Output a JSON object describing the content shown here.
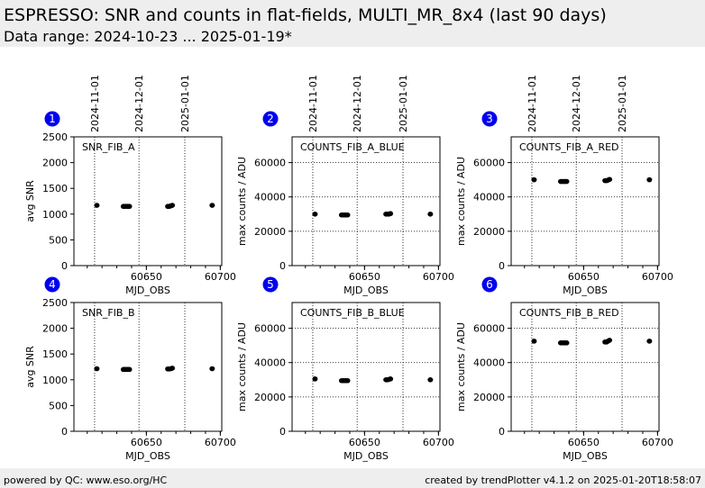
{
  "header": {
    "title": "ESPRESSO: SNR and counts in flat-fields, MULTI_MR_8x4 (last 90 days)",
    "subtitle": "Data range: 2024-10-23 ... 2025-01-19*"
  },
  "footer": {
    "left": "powered by QC: www.eso.org/HC",
    "right": "created by trendPlotter v4.1.2 on 2025-01-20T18:58:07"
  },
  "chart_data": [
    {
      "type": "scatter",
      "number": "1",
      "label": "SNR_FIB_A",
      "xlabel": "MJD_OBS",
      "ylabel": "avg SNR",
      "xlim": [
        60601,
        60701
      ],
      "ylim": [
        0,
        2500
      ],
      "yticks": [
        0,
        500,
        1000,
        1500,
        2000,
        2500
      ],
      "xticks": [
        60650,
        60700
      ],
      "date_ticks": [
        {
          "date": "2024-11-01",
          "mjd": 60615
        },
        {
          "date": "2024-12-01",
          "mjd": 60645
        },
        {
          "date": "2025-01-01",
          "mjd": 60676
        }
      ],
      "x": [
        60616.5,
        60634.5,
        60635.5,
        60636.5,
        60637.5,
        60638.5,
        60664.5,
        60665.5,
        60666.5,
        60667.5,
        60694.5
      ],
      "y": [
        1170,
        1150,
        1150,
        1150,
        1150,
        1150,
        1150,
        1150,
        1160,
        1170,
        1170
      ]
    },
    {
      "type": "scatter",
      "number": "2",
      "label": "COUNTS_FIB_A_BLUE",
      "xlabel": "MJD_OBS",
      "ylabel": "max counts / ADU",
      "xlim": [
        60601,
        60701
      ],
      "ylim": [
        0,
        75000
      ],
      "yticks": [
        0,
        20000,
        40000,
        60000
      ],
      "xticks": [
        60650,
        60700
      ],
      "date_ticks": [
        {
          "date": "2024-11-01",
          "mjd": 60615
        },
        {
          "date": "2024-12-01",
          "mjd": 60645
        },
        {
          "date": "2025-01-01",
          "mjd": 60676
        }
      ],
      "x": [
        60616.5,
        60634.5,
        60635.5,
        60636.5,
        60637.5,
        60638.5,
        60664.5,
        60665.5,
        60666.5,
        60667.5,
        60694.5
      ],
      "y": [
        30000,
        29500,
        29500,
        29500,
        29500,
        29500,
        30000,
        30000,
        30000,
        30300,
        30000
      ]
    },
    {
      "type": "scatter",
      "number": "3",
      "label": "COUNTS_FIB_A_RED",
      "xlabel": "MJD_OBS",
      "ylabel": "max counts / ADU",
      "xlim": [
        60601,
        60701
      ],
      "ylim": [
        0,
        75000
      ],
      "yticks": [
        0,
        20000,
        40000,
        60000
      ],
      "xticks": [
        60650,
        60700
      ],
      "date_ticks": [
        {
          "date": "2024-11-01",
          "mjd": 60615
        },
        {
          "date": "2024-12-01",
          "mjd": 60645
        },
        {
          "date": "2025-01-01",
          "mjd": 60676
        }
      ],
      "x": [
        60616.5,
        60634.5,
        60635.5,
        60636.5,
        60637.5,
        60638.5,
        60664.5,
        60665.5,
        60666.5,
        60667.5,
        60694.5
      ],
      "y": [
        50000,
        49000,
        49000,
        49000,
        49000,
        49000,
        49500,
        49500,
        49800,
        50200,
        50000
      ]
    },
    {
      "type": "scatter",
      "number": "4",
      "label": "SNR_FIB_B",
      "xlabel": "MJD_OBS",
      "ylabel": "avg SNR",
      "xlim": [
        60601,
        60701
      ],
      "ylim": [
        0,
        2500
      ],
      "yticks": [
        0,
        500,
        1000,
        1500,
        2000,
        2500
      ],
      "xticks": [
        60650,
        60700
      ],
      "date_ticks": [],
      "x": [
        60616.5,
        60634.5,
        60635.5,
        60636.5,
        60637.5,
        60638.5,
        60664.5,
        60665.5,
        60666.5,
        60667.5,
        60694.5
      ],
      "y": [
        1215,
        1200,
        1200,
        1200,
        1200,
        1200,
        1210,
        1210,
        1215,
        1225,
        1215
      ]
    },
    {
      "type": "scatter",
      "number": "5",
      "label": "COUNTS_FIB_B_BLUE",
      "xlabel": "MJD_OBS",
      "ylabel": "max counts / ADU",
      "xlim": [
        60601,
        60701
      ],
      "ylim": [
        0,
        75000
      ],
      "yticks": [
        0,
        20000,
        40000,
        60000
      ],
      "xticks": [
        60650,
        60700
      ],
      "date_ticks": [],
      "x": [
        60616.5,
        60634.5,
        60635.5,
        60636.5,
        60637.5,
        60638.5,
        60664.5,
        60665.5,
        60666.5,
        60667.5,
        60694.5
      ],
      "y": [
        30500,
        29500,
        29500,
        29500,
        29500,
        29500,
        30000,
        30000,
        30200,
        30500,
        30000
      ]
    },
    {
      "type": "scatter",
      "number": "6",
      "label": "COUNTS_FIB_B_RED",
      "xlabel": "MJD_OBS",
      "ylabel": "max counts / ADU",
      "xlim": [
        60601,
        60701
      ],
      "ylim": [
        0,
        75000
      ],
      "yticks": [
        0,
        20000,
        40000,
        60000
      ],
      "xticks": [
        60650,
        60700
      ],
      "date_ticks": [],
      "x": [
        60616.5,
        60634.5,
        60635.5,
        60636.5,
        60637.5,
        60638.5,
        60664.5,
        60665.5,
        60666.5,
        60667.5,
        60694.5
      ],
      "y": [
        52500,
        51500,
        51500,
        51500,
        51500,
        51500,
        52000,
        52000,
        52500,
        53000,
        52500
      ]
    }
  ]
}
